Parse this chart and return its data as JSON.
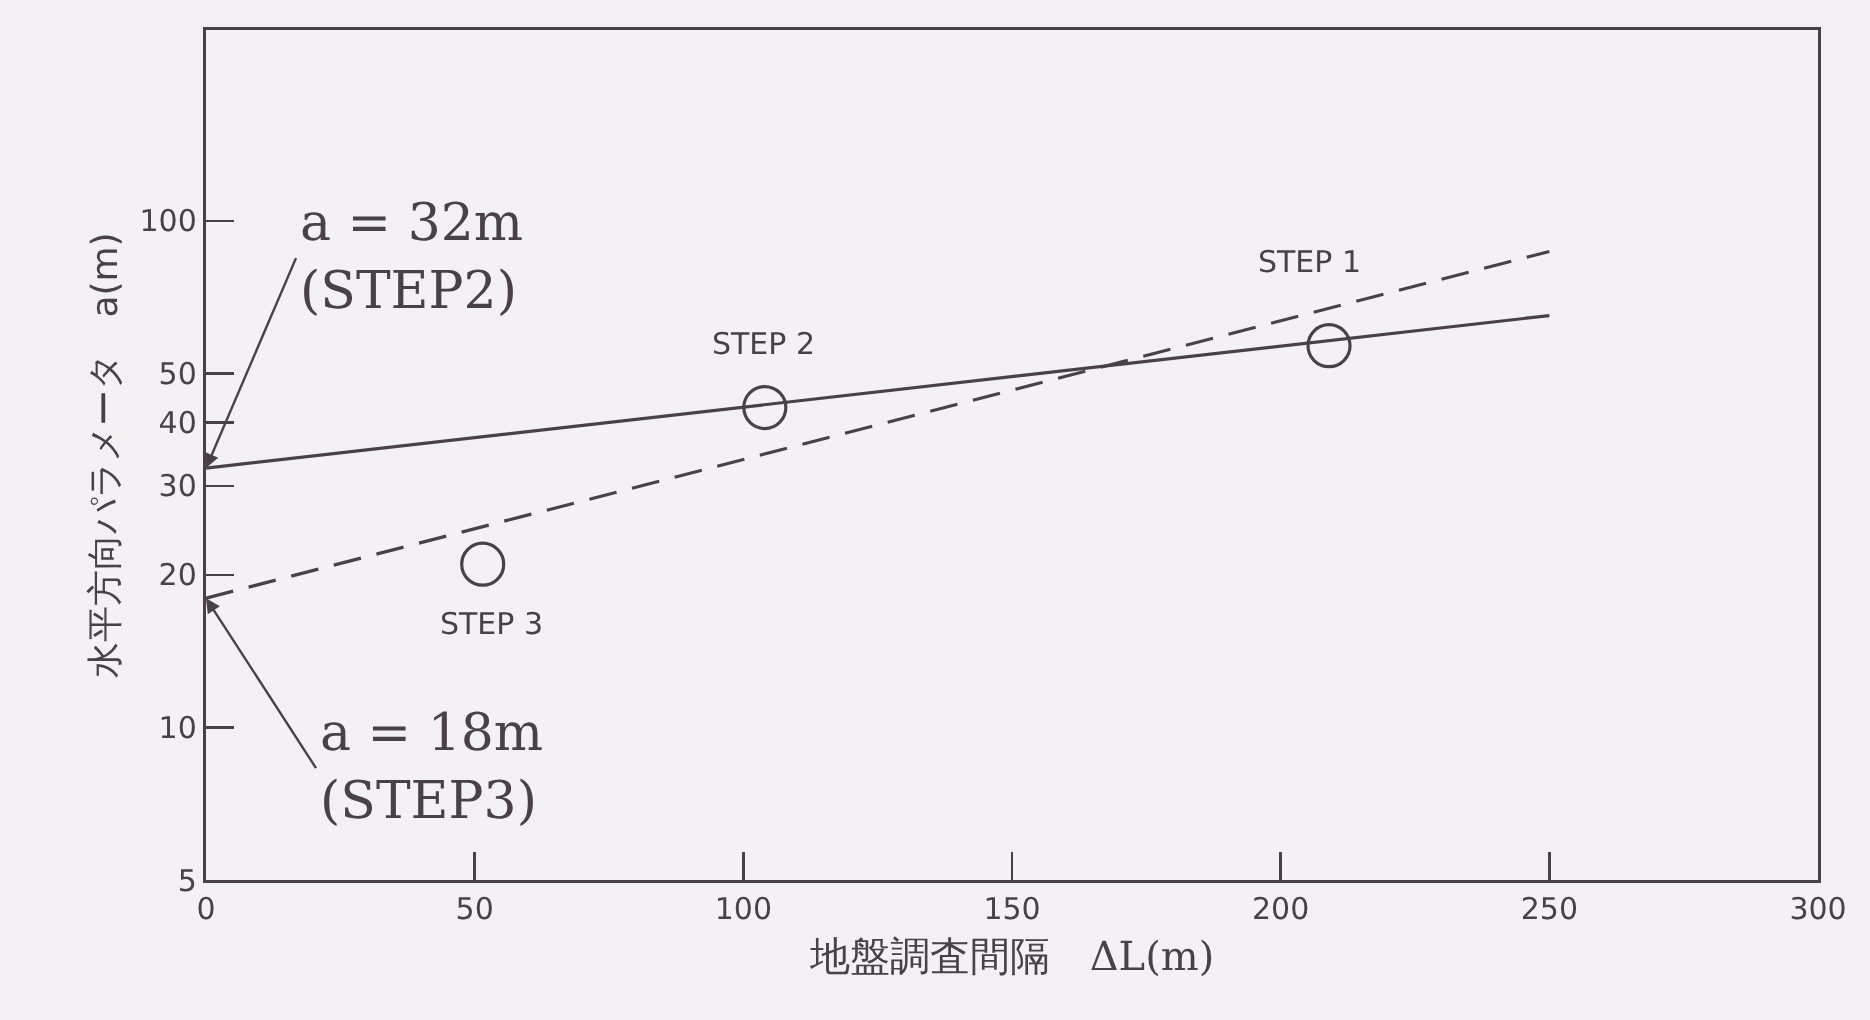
{
  "chart_data": {
    "type": "line",
    "xlabel": "地盤調査間隔　ΔL(m)",
    "ylabel": "水平方向パラメータ　a(m)",
    "log": "y",
    "grid": false,
    "xlim": [
      0,
      300
    ],
    "xticks": [
      0,
      50,
      100,
      150,
      200,
      250,
      300
    ],
    "ylim": [
      5,
      238
    ],
    "yticks": [
      5,
      10,
      20,
      30,
      40,
      50,
      100
    ],
    "series": [
      {
        "type": "line",
        "line_style": "solid",
        "color": "#4a4048",
        "x": [
          0,
          250
        ],
        "values": [
          32.5,
          65
        ]
      },
      {
        "type": "line",
        "line_style": "dashed",
        "color": "#4a4048",
        "x": [
          0,
          250
        ],
        "values": [
          18,
          87
        ]
      },
      {
        "type": "scatter",
        "marker": "circle",
        "color": "#4a4048",
        "x": [
          209,
          104,
          51.5
        ],
        "values": [
          56.7,
          42.8,
          21
        ]
      }
    ],
    "annotations": [
      {
        "text": "a = 32m\n(STEP2)",
        "x": 0,
        "y": 32.5
      },
      {
        "text": "a = 18m\n(STEP3)",
        "x": 0,
        "y": 18
      },
      {
        "text": "STEP 1",
        "x": 209,
        "y": 56.7
      },
      {
        "text": "STEP 2",
        "x": 104,
        "y": 42.8
      },
      {
        "text": "STEP 3",
        "x": 51.5,
        "y": 21
      }
    ]
  }
}
